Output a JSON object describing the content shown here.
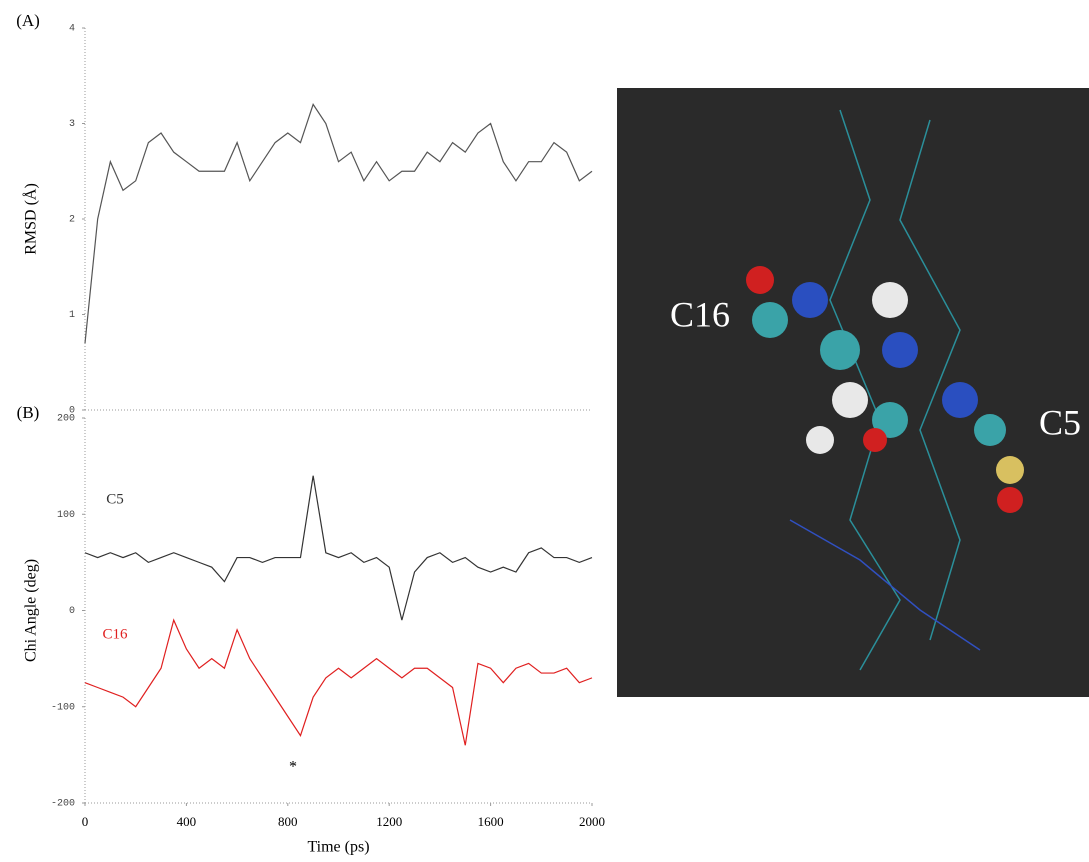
{
  "chart_data": [
    {
      "type": "line",
      "panel_label": "(A)",
      "ylabel": "RMSD (Å)",
      "x": [
        0,
        50,
        100,
        150,
        200,
        250,
        300,
        350,
        400,
        450,
        500,
        550,
        600,
        650,
        700,
        750,
        800,
        850,
        900,
        950,
        1000,
        1050,
        1100,
        1150,
        1200,
        1250,
        1300,
        1350,
        1400,
        1450,
        1500,
        1550,
        1600,
        1650,
        1700,
        1750,
        1800,
        1850,
        1900,
        1950,
        2000
      ],
      "xlim": [
        0,
        2000
      ],
      "ylim": [
        0,
        4
      ],
      "yticks": [
        0,
        1,
        2,
        3,
        4
      ],
      "series": [
        {
          "color": "#555555",
          "values": [
            0.7,
            2.0,
            2.6,
            2.3,
            2.4,
            2.8,
            2.9,
            2.7,
            2.6,
            2.5,
            2.5,
            2.5,
            2.8,
            2.4,
            2.6,
            2.8,
            2.9,
            2.8,
            3.2,
            3.0,
            2.6,
            2.7,
            2.4,
            2.6,
            2.4,
            2.5,
            2.5,
            2.7,
            2.6,
            2.8,
            2.7,
            2.9,
            3.0,
            2.6,
            2.4,
            2.6,
            2.6,
            2.8,
            2.7,
            2.4,
            2.5
          ]
        }
      ]
    },
    {
      "type": "line",
      "panel_label": "(B)",
      "ylabel": "Chi Angle (deg)",
      "xlabel": "Time (ps)",
      "x": [
        0,
        50,
        100,
        150,
        200,
        250,
        300,
        350,
        400,
        450,
        500,
        550,
        600,
        650,
        700,
        750,
        800,
        850,
        900,
        950,
        1000,
        1050,
        1100,
        1150,
        1200,
        1250,
        1300,
        1350,
        1400,
        1450,
        1500,
        1550,
        1600,
        1650,
        1700,
        1750,
        1800,
        1850,
        1900,
        1950,
        2000
      ],
      "xlim": [
        0,
        2000
      ],
      "xticks": [
        0,
        400,
        800,
        1200,
        1600,
        2000
      ],
      "ylim": [
        -200,
        200
      ],
      "yticks": [
        -200,
        -100,
        0,
        100,
        200
      ],
      "series": [
        {
          "name": "C5",
          "color": "#333333",
          "values": [
            60,
            55,
            60,
            55,
            60,
            50,
            55,
            60,
            55,
            50,
            45,
            30,
            55,
            55,
            50,
            55,
            55,
            55,
            140,
            60,
            55,
            60,
            50,
            55,
            45,
            -10,
            40,
            55,
            60,
            50,
            55,
            45,
            40,
            45,
            40,
            60,
            65,
            55,
            55,
            50,
            55
          ]
        },
        {
          "name": "C16",
          "color": "#e02020",
          "values": [
            -75,
            -80,
            -85,
            -90,
            -100,
            -80,
            -60,
            -10,
            -40,
            -60,
            -50,
            -60,
            -20,
            -50,
            -70,
            -90,
            -110,
            -130,
            -90,
            -70,
            -60,
            -70,
            -60,
            -50,
            -60,
            -70,
            -60,
            -60,
            -70,
            -80,
            -140,
            -55,
            -60,
            -75,
            -60,
            -55,
            -65,
            -65,
            -60,
            -75,
            -70
          ]
        }
      ],
      "annotation": "*"
    }
  ],
  "molecule_image": {
    "labels": [
      "C16",
      "C5"
    ]
  }
}
